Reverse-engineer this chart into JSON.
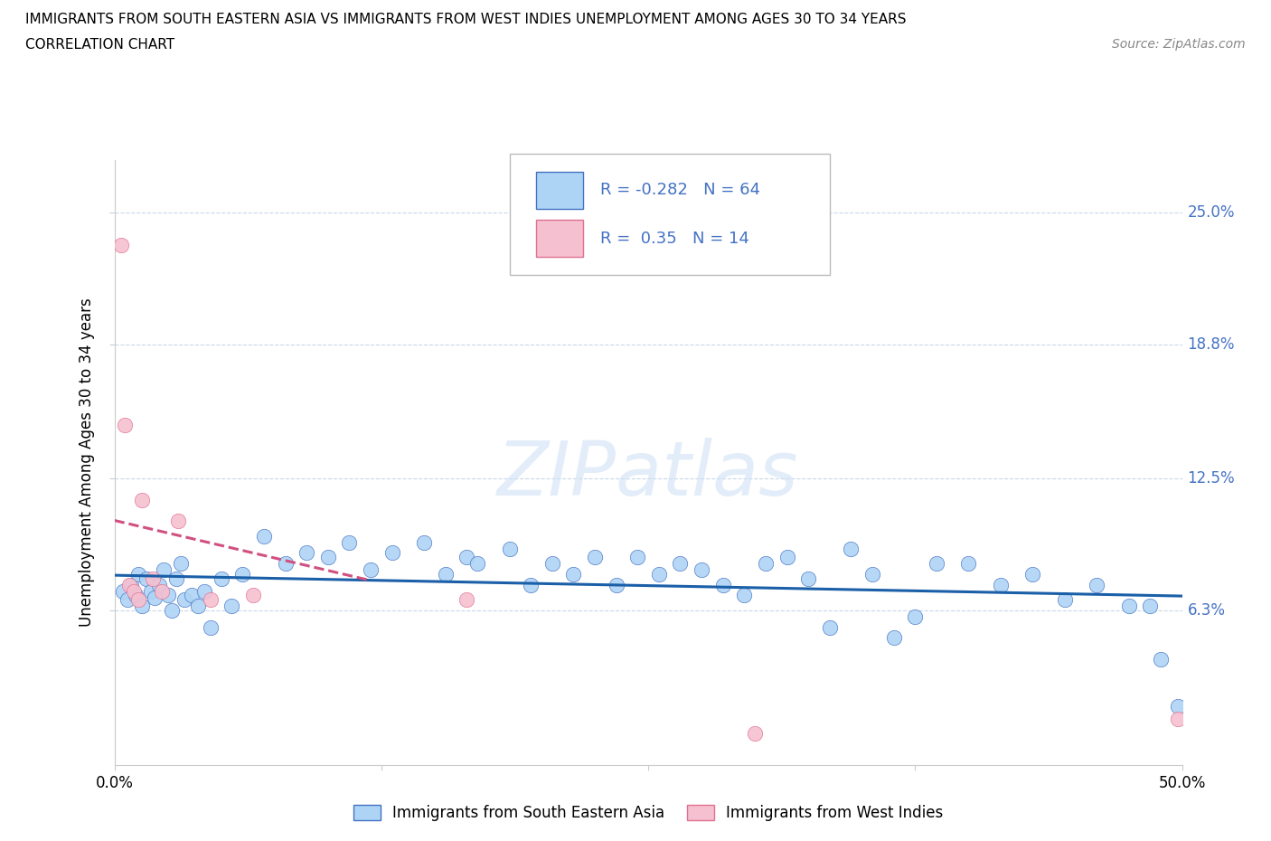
{
  "title_line1": "IMMIGRANTS FROM SOUTH EASTERN ASIA VS IMMIGRANTS FROM WEST INDIES UNEMPLOYMENT AMONG AGES 30 TO 34 YEARS",
  "title_line2": "CORRELATION CHART",
  "source": "Source: ZipAtlas.com",
  "ylabel": "Unemployment Among Ages 30 to 34 years",
  "xlim": [
    0.0,
    50.0
  ],
  "ylim": [
    -1.0,
    27.5
  ],
  "ytick_vals": [
    6.3,
    12.5,
    18.8,
    25.0
  ],
  "ytick_labels": [
    "6.3%",
    "12.5%",
    "18.8%",
    "25.0%"
  ],
  "xtick_vals": [
    0.0,
    12.5,
    25.0,
    37.5,
    50.0
  ],
  "xtick_labels": [
    "0.0%",
    "",
    "",
    "",
    "50.0%"
  ],
  "blue_scatter_x": [
    0.4,
    0.6,
    0.8,
    1.0,
    1.1,
    1.3,
    1.5,
    1.7,
    1.9,
    2.1,
    2.3,
    2.5,
    2.7,
    2.9,
    3.1,
    3.3,
    3.6,
    3.9,
    4.2,
    4.5,
    5.0,
    5.5,
    6.0,
    7.0,
    8.0,
    9.0,
    10.0,
    11.0,
    12.0,
    13.0,
    14.5,
    15.5,
    16.5,
    17.0,
    18.5,
    19.5,
    20.5,
    21.5,
    22.5,
    23.5,
    24.5,
    25.5,
    26.5,
    27.5,
    28.5,
    29.5,
    30.5,
    31.5,
    32.5,
    33.5,
    34.5,
    35.5,
    36.5,
    37.5,
    38.5,
    40.0,
    41.5,
    43.0,
    44.5,
    46.0,
    47.5,
    48.5,
    49.0,
    49.8
  ],
  "blue_scatter_y": [
    7.2,
    6.8,
    7.5,
    7.0,
    8.0,
    6.5,
    7.8,
    7.2,
    6.9,
    7.5,
    8.2,
    7.0,
    6.3,
    7.8,
    8.5,
    6.8,
    7.0,
    6.5,
    7.2,
    5.5,
    7.8,
    6.5,
    8.0,
    9.8,
    8.5,
    9.0,
    8.8,
    9.5,
    8.2,
    9.0,
    9.5,
    8.0,
    8.8,
    8.5,
    9.2,
    7.5,
    8.5,
    8.0,
    8.8,
    7.5,
    8.8,
    8.0,
    8.5,
    8.2,
    7.5,
    7.0,
    8.5,
    8.8,
    7.8,
    5.5,
    9.2,
    8.0,
    5.0,
    6.0,
    8.5,
    8.5,
    7.5,
    8.0,
    6.8,
    7.5,
    6.5,
    6.5,
    4.0,
    1.8
  ],
  "pink_scatter_x": [
    0.3,
    0.5,
    0.7,
    0.9,
    1.1,
    1.3,
    1.8,
    2.2,
    3.0,
    4.5,
    6.5,
    16.5,
    30.0,
    49.8
  ],
  "pink_scatter_y": [
    23.5,
    15.0,
    7.5,
    7.2,
    6.8,
    11.5,
    7.8,
    7.2,
    10.5,
    6.8,
    7.0,
    6.8,
    0.5,
    1.2
  ],
  "blue_R": -0.282,
  "blue_N": 64,
  "pink_R": 0.35,
  "pink_N": 14,
  "blue_color": "#aed4f5",
  "blue_edge_color": "#4472c4",
  "blue_line_color": "#1a5fa8",
  "pink_color": "#f5c0d0",
  "pink_edge_color": "#e07090",
  "pink_line_color": "#d05080",
  "watermark": "ZIPatlas",
  "bg_color": "#ffffff",
  "grid_color": "#c8d8ea",
  "right_label_color": "#4472c4",
  "left_ytick_color": "#888888"
}
